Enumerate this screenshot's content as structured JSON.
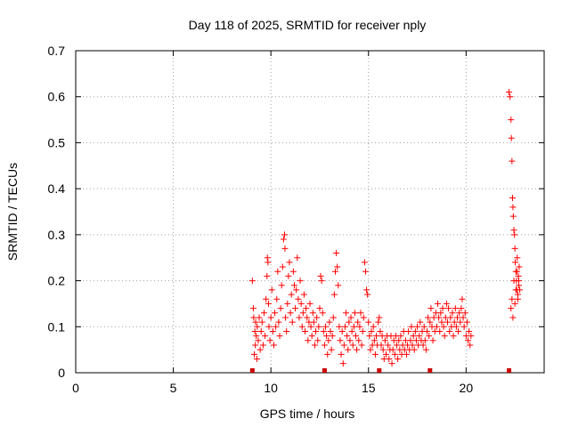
{
  "chart_data": {
    "type": "scatter",
    "title": "Day 118 of 2025, SRMTID for receiver nply",
    "xlabel": "GPS time / hours",
    "ylabel": "SRMTID / TECUs",
    "xlim": [
      0,
      24
    ],
    "ylim": [
      0,
      0.7
    ],
    "xticks": [
      "0",
      "5",
      "10",
      "15",
      "20"
    ],
    "yticks": [
      "0",
      "0.1",
      "0.2",
      "0.3",
      "0.4",
      "0.5",
      "0.6",
      "0.7"
    ],
    "grid": true,
    "marker": "plus",
    "color": "#ff0000",
    "series": [
      {
        "name": "SRMTID",
        "points": [
          [
            9.05,
            0.2
          ],
          [
            9.1,
            0.14
          ],
          [
            9.12,
            0.12
          ],
          [
            9.15,
            0.04
          ],
          [
            9.18,
            0.09
          ],
          [
            9.2,
            0.06
          ],
          [
            9.22,
            0.11
          ],
          [
            9.25,
            0.08
          ],
          [
            9.28,
            0.03
          ],
          [
            9.3,
            0.1
          ],
          [
            9.35,
            0.07
          ],
          [
            9.4,
            0.12
          ],
          [
            9.45,
            0.05
          ],
          [
            9.5,
            0.09
          ],
          [
            9.55,
            0.11
          ],
          [
            9.6,
            0.06
          ],
          [
            9.65,
            0.13
          ],
          [
            9.7,
            0.08
          ],
          [
            9.75,
            0.16
          ],
          [
            9.8,
            0.21
          ],
          [
            9.82,
            0.25
          ],
          [
            9.85,
            0.24
          ],
          [
            9.88,
            0.15
          ],
          [
            9.9,
            0.1
          ],
          [
            9.95,
            0.07
          ],
          [
            10.0,
            0.12
          ],
          [
            10.05,
            0.18
          ],
          [
            10.1,
            0.09
          ],
          [
            10.15,
            0.06
          ],
          [
            10.2,
            0.13
          ],
          [
            10.25,
            0.1
          ],
          [
            10.3,
            0.16
          ],
          [
            10.35,
            0.22
          ],
          [
            10.4,
            0.11
          ],
          [
            10.45,
            0.08
          ],
          [
            10.5,
            0.14
          ],
          [
            10.55,
            0.19
          ],
          [
            10.6,
            0.23
          ],
          [
            10.65,
            0.29
          ],
          [
            10.7,
            0.3
          ],
          [
            10.72,
            0.27
          ],
          [
            10.75,
            0.12
          ],
          [
            10.8,
            0.09
          ],
          [
            10.85,
            0.15
          ],
          [
            10.9,
            0.21
          ],
          [
            10.95,
            0.24
          ],
          [
            11.0,
            0.13
          ],
          [
            11.05,
            0.17
          ],
          [
            11.1,
            0.11
          ],
          [
            11.15,
            0.22
          ],
          [
            11.2,
            0.19
          ],
          [
            11.25,
            0.14
          ],
          [
            11.3,
            0.18
          ],
          [
            11.35,
            0.25
          ],
          [
            11.4,
            0.16
          ],
          [
            11.45,
            0.12
          ],
          [
            11.5,
            0.2
          ],
          [
            11.55,
            0.15
          ],
          [
            11.6,
            0.1
          ],
          [
            11.65,
            0.13
          ],
          [
            11.7,
            0.17
          ],
          [
            11.75,
            0.09
          ],
          [
            11.8,
            0.14
          ],
          [
            11.85,
            0.12
          ],
          [
            11.9,
            0.07
          ],
          [
            11.95,
            0.11
          ],
          [
            12.0,
            0.15
          ],
          [
            12.05,
            0.1
          ],
          [
            12.1,
            0.08
          ],
          [
            12.15,
            0.13
          ],
          [
            12.2,
            0.11
          ],
          [
            12.25,
            0.06
          ],
          [
            12.3,
            0.09
          ],
          [
            12.35,
            0.12
          ],
          [
            12.4,
            0.07
          ],
          [
            12.45,
            0.1
          ],
          [
            12.5,
            0.14
          ],
          [
            12.55,
            0.21
          ],
          [
            12.6,
            0.2
          ],
          [
            12.65,
            0.13
          ],
          [
            12.7,
            0.09
          ],
          [
            12.75,
            0.06
          ],
          [
            12.8,
            0.1
          ],
          [
            12.85,
            0.08
          ],
          [
            12.9,
            0.04
          ],
          [
            12.95,
            0.07
          ],
          [
            13.0,
            0.11
          ],
          [
            13.05,
            0.09
          ],
          [
            13.1,
            0.05
          ],
          [
            13.15,
            0.08
          ],
          [
            13.2,
            0.12
          ],
          [
            13.25,
            0.17
          ],
          [
            13.3,
            0.22
          ],
          [
            13.35,
            0.26
          ],
          [
            13.4,
            0.23
          ],
          [
            13.45,
            0.19
          ],
          [
            13.5,
            0.1
          ],
          [
            13.55,
            0.07
          ],
          [
            13.6,
            0.04
          ],
          [
            13.65,
            0.09
          ],
          [
            13.7,
            0.02
          ],
          [
            13.75,
            0.06
          ],
          [
            13.8,
            0.1
          ],
          [
            13.85,
            0.13
          ],
          [
            13.9,
            0.08
          ],
          [
            13.95,
            0.05
          ],
          [
            14.0,
            0.11
          ],
          [
            14.05,
            0.07
          ],
          [
            14.1,
            0.12
          ],
          [
            14.15,
            0.09
          ],
          [
            14.2,
            0.06
          ],
          [
            14.25,
            0.1
          ],
          [
            14.3,
            0.13
          ],
          [
            14.35,
            0.08
          ],
          [
            14.4,
            0.05
          ],
          [
            14.45,
            0.11
          ],
          [
            14.5,
            0.07
          ],
          [
            14.55,
            0.1
          ],
          [
            14.6,
            0.13
          ],
          [
            14.65,
            0.06
          ],
          [
            14.7,
            0.09
          ],
          [
            14.75,
            0.12
          ],
          [
            14.8,
            0.24
          ],
          [
            14.85,
            0.22
          ],
          [
            14.9,
            0.18
          ],
          [
            14.95,
            0.17
          ],
          [
            15.0,
            0.11
          ],
          [
            15.05,
            0.08
          ],
          [
            15.1,
            0.05
          ],
          [
            15.15,
            0.09
          ],
          [
            15.2,
            0.06
          ],
          [
            15.25,
            0.1
          ],
          [
            15.3,
            0.07
          ],
          [
            15.35,
            0.04
          ],
          [
            15.4,
            0.08
          ],
          [
            15.45,
            0.06
          ],
          [
            15.5,
            0.11
          ],
          [
            15.55,
            0.12
          ],
          [
            15.6,
            0.09
          ],
          [
            15.65,
            0.06
          ],
          [
            15.7,
            0.08
          ],
          [
            15.75,
            0.05
          ],
          [
            15.8,
            0.03
          ],
          [
            15.85,
            0.07
          ],
          [
            15.9,
            0.04
          ],
          [
            15.95,
            0.08
          ],
          [
            16.0,
            0.06
          ],
          [
            16.05,
            0.03
          ],
          [
            16.1,
            0.05
          ],
          [
            16.15,
            0.08
          ],
          [
            16.2,
            0.02
          ],
          [
            16.25,
            0.05
          ],
          [
            16.3,
            0.07
          ],
          [
            16.35,
            0.04
          ],
          [
            16.4,
            0.08
          ],
          [
            16.45,
            0.06
          ],
          [
            16.5,
            0.03
          ],
          [
            16.55,
            0.07
          ],
          [
            16.6,
            0.05
          ],
          [
            16.65,
            0.08
          ],
          [
            16.7,
            0.04
          ],
          [
            16.75,
            0.06
          ],
          [
            16.8,
            0.09
          ],
          [
            16.85,
            0.05
          ],
          [
            16.9,
            0.07
          ],
          [
            16.95,
            0.04
          ],
          [
            17.0,
            0.06
          ],
          [
            17.05,
            0.09
          ],
          [
            17.1,
            0.05
          ],
          [
            17.15,
            0.07
          ],
          [
            17.2,
            0.1
          ],
          [
            17.25,
            0.06
          ],
          [
            17.3,
            0.08
          ],
          [
            17.35,
            0.05
          ],
          [
            17.4,
            0.09
          ],
          [
            17.45,
            0.07
          ],
          [
            17.5,
            0.1
          ],
          [
            17.55,
            0.06
          ],
          [
            17.6,
            0.08
          ],
          [
            17.65,
            0.11
          ],
          [
            17.7,
            0.07
          ],
          [
            17.75,
            0.09
          ],
          [
            17.8,
            0.06
          ],
          [
            17.85,
            0.1
          ],
          [
            17.9,
            0.07
          ],
          [
            17.95,
            0.05
          ],
          [
            18.0,
            0.09
          ],
          [
            18.05,
            0.12
          ],
          [
            18.1,
            0.08
          ],
          [
            18.15,
            0.11
          ],
          [
            18.2,
            0.14
          ],
          [
            18.25,
            0.1
          ],
          [
            18.3,
            0.07
          ],
          [
            18.35,
            0.12
          ],
          [
            18.4,
            0.09
          ],
          [
            18.45,
            0.13
          ],
          [
            18.5,
            0.1
          ],
          [
            18.55,
            0.15
          ],
          [
            18.6,
            0.12
          ],
          [
            18.65,
            0.09
          ],
          [
            18.7,
            0.13
          ],
          [
            18.75,
            0.11
          ],
          [
            18.8,
            0.14
          ],
          [
            18.85,
            0.1
          ],
          [
            18.9,
            0.08
          ],
          [
            18.95,
            0.12
          ],
          [
            19.0,
            0.15
          ],
          [
            19.05,
            0.11
          ],
          [
            19.1,
            0.14
          ],
          [
            19.15,
            0.09
          ],
          [
            19.2,
            0.12
          ],
          [
            19.25,
            0.1
          ],
          [
            19.3,
            0.13
          ],
          [
            19.35,
            0.08
          ],
          [
            19.4,
            0.11
          ],
          [
            19.45,
            0.14
          ],
          [
            19.5,
            0.1
          ],
          [
            19.55,
            0.12
          ],
          [
            19.6,
            0.09
          ],
          [
            19.65,
            0.13
          ],
          [
            19.7,
            0.11
          ],
          [
            19.75,
            0.14
          ],
          [
            19.8,
            0.16
          ],
          [
            19.85,
            0.12
          ],
          [
            19.9,
            0.1
          ],
          [
            19.95,
            0.13
          ],
          [
            20.0,
            0.08
          ],
          [
            20.05,
            0.11
          ],
          [
            20.1,
            0.07
          ],
          [
            20.15,
            0.09
          ],
          [
            20.2,
            0.06
          ],
          [
            20.25,
            0.08
          ],
          [
            22.2,
            0.61
          ],
          [
            22.25,
            0.6
          ],
          [
            22.3,
            0.55
          ],
          [
            22.32,
            0.51
          ],
          [
            22.35,
            0.46
          ],
          [
            22.38,
            0.38
          ],
          [
            22.4,
            0.36
          ],
          [
            22.42,
            0.34
          ],
          [
            22.45,
            0.31
          ],
          [
            22.48,
            0.3
          ],
          [
            22.5,
            0.27
          ],
          [
            22.52,
            0.24
          ],
          [
            22.55,
            0.22
          ],
          [
            22.58,
            0.2
          ],
          [
            22.6,
            0.18
          ],
          [
            22.62,
            0.25
          ],
          [
            22.65,
            0.17
          ],
          [
            22.68,
            0.21
          ],
          [
            22.7,
            0.19
          ],
          [
            22.72,
            0.23
          ],
          [
            22.3,
            0.14
          ],
          [
            22.35,
            0.16
          ],
          [
            22.4,
            0.12
          ],
          [
            22.45,
            0.2
          ],
          [
            22.5,
            0.15
          ],
          [
            22.55,
            0.18
          ],
          [
            22.6,
            0.22
          ],
          [
            22.65,
            0.16
          ],
          [
            22.7,
            0.2
          ],
          [
            22.75,
            0.18
          ]
        ]
      }
    ],
    "gap_markers_x": [
      9.05,
      12.75,
      15.55,
      18.15,
      22.2
    ]
  }
}
